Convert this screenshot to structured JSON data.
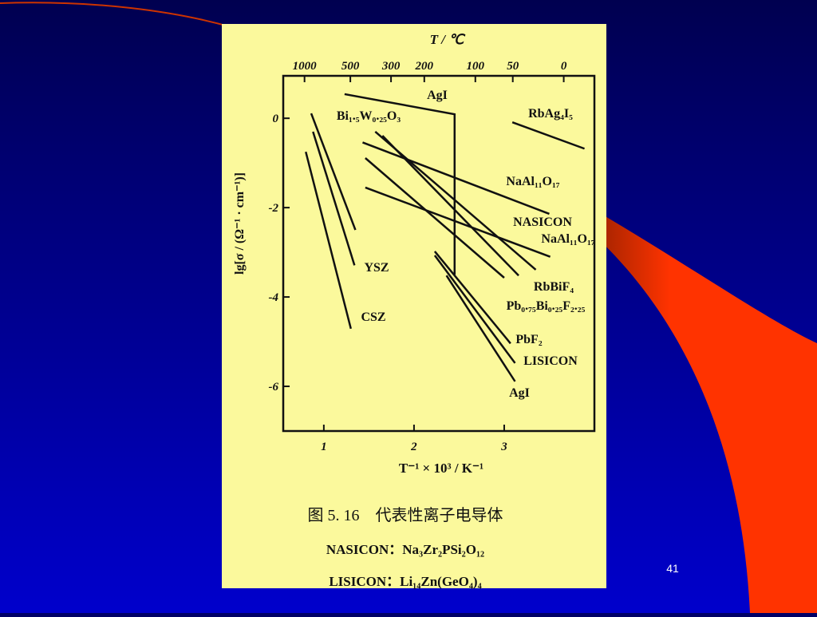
{
  "slide_number": "41",
  "chart_data": {
    "type": "line",
    "top_axis_label": "T / ℃",
    "xlabel": "T⁻¹ × 10³ / K⁻¹",
    "ylabel": "lg[σ / (Ω⁻¹ · cm⁻¹)]",
    "xlim": [
      0.55,
      4.0
    ],
    "ylim": [
      -7.0,
      0.95
    ],
    "xticks": [
      1,
      2,
      3
    ],
    "yticks": [
      0,
      -2,
      -4,
      -6
    ],
    "x2ticks": [
      {
        "value": 0.786,
        "label": "1000"
      },
      {
        "value": 1.294,
        "label": "500"
      },
      {
        "value": 1.745,
        "label": "300"
      },
      {
        "value": 2.114,
        "label": "200"
      },
      {
        "value": 2.68,
        "label": "100"
      },
      {
        "value": 3.095,
        "label": "50"
      },
      {
        "value": 3.66,
        "label": "0"
      }
    ],
    "series": [
      {
        "name": "AgI",
        "color": "#111111",
        "x": [
          1.23,
          2.45,
          2.45
        ],
        "values": [
          0.54,
          0.09,
          -3.5
        ]
      },
      {
        "name": "RbAg₄I₅",
        "color": "#111111",
        "x": [
          3.09,
          3.89
        ],
        "values": [
          -0.09,
          -0.68
        ]
      },
      {
        "name": "Bi₁.₅W₀.₂₅O₃",
        "color": "#111111",
        "x": [
          0.86,
          1.35
        ],
        "values": [
          0.11,
          -2.5
        ]
      },
      {
        "name": "YSZ",
        "color": "#111111",
        "x": [
          0.88,
          1.34
        ],
        "values": [
          -0.3,
          -3.29
        ]
      },
      {
        "name": "CSZ",
        "color": "#111111",
        "x": [
          0.8,
          1.3
        ],
        "values": [
          -0.75,
          -4.71
        ]
      },
      {
        "name": "NaAl₁₁O₁₇",
        "color": "#111111",
        "x": [
          1.43,
          3.5
        ],
        "values": [
          -0.54,
          -2.14
        ]
      },
      {
        "name": "NASICON",
        "color": "#111111",
        "x": [
          1.57,
          3.35
        ],
        "values": [
          -0.3,
          -3.39
        ]
      },
      {
        "name": "NaAl₁₁O₁₇",
        "color": "#111111",
        "x": [
          1.46,
          3.51
        ],
        "values": [
          -1.55,
          -3.1
        ]
      },
      {
        "name": "RbBiF₄",
        "color": "#111111",
        "x": [
          1.65,
          3.16
        ],
        "values": [
          -0.39,
          -3.52
        ]
      },
      {
        "name": "Pb₀.₇₅Bi₀.₂₅F₂.₂₅",
        "color": "#111111",
        "x": [
          1.46,
          3.0
        ],
        "values": [
          -0.89,
          -3.57
        ]
      },
      {
        "name": "PbF₂",
        "color": "#111111",
        "x": [
          2.23,
          3.07
        ],
        "values": [
          -2.98,
          -5.04
        ]
      },
      {
        "name": "LISICON",
        "color": "#111111",
        "x": [
          2.23,
          3.12
        ],
        "values": [
          -3.07,
          -5.48
        ]
      },
      {
        "name": "AgI",
        "color": "#111111",
        "x": [
          2.36,
          3.12
        ],
        "values": [
          -3.52,
          -5.89
        ]
      }
    ],
    "caption": "图 5. 16　代表性离子电导体",
    "notes": [
      "NASICON：Na₃Zr₂PSi₂O₁₂",
      "LISICON：Li₁₄Zn(GeO₄)₄"
    ]
  }
}
